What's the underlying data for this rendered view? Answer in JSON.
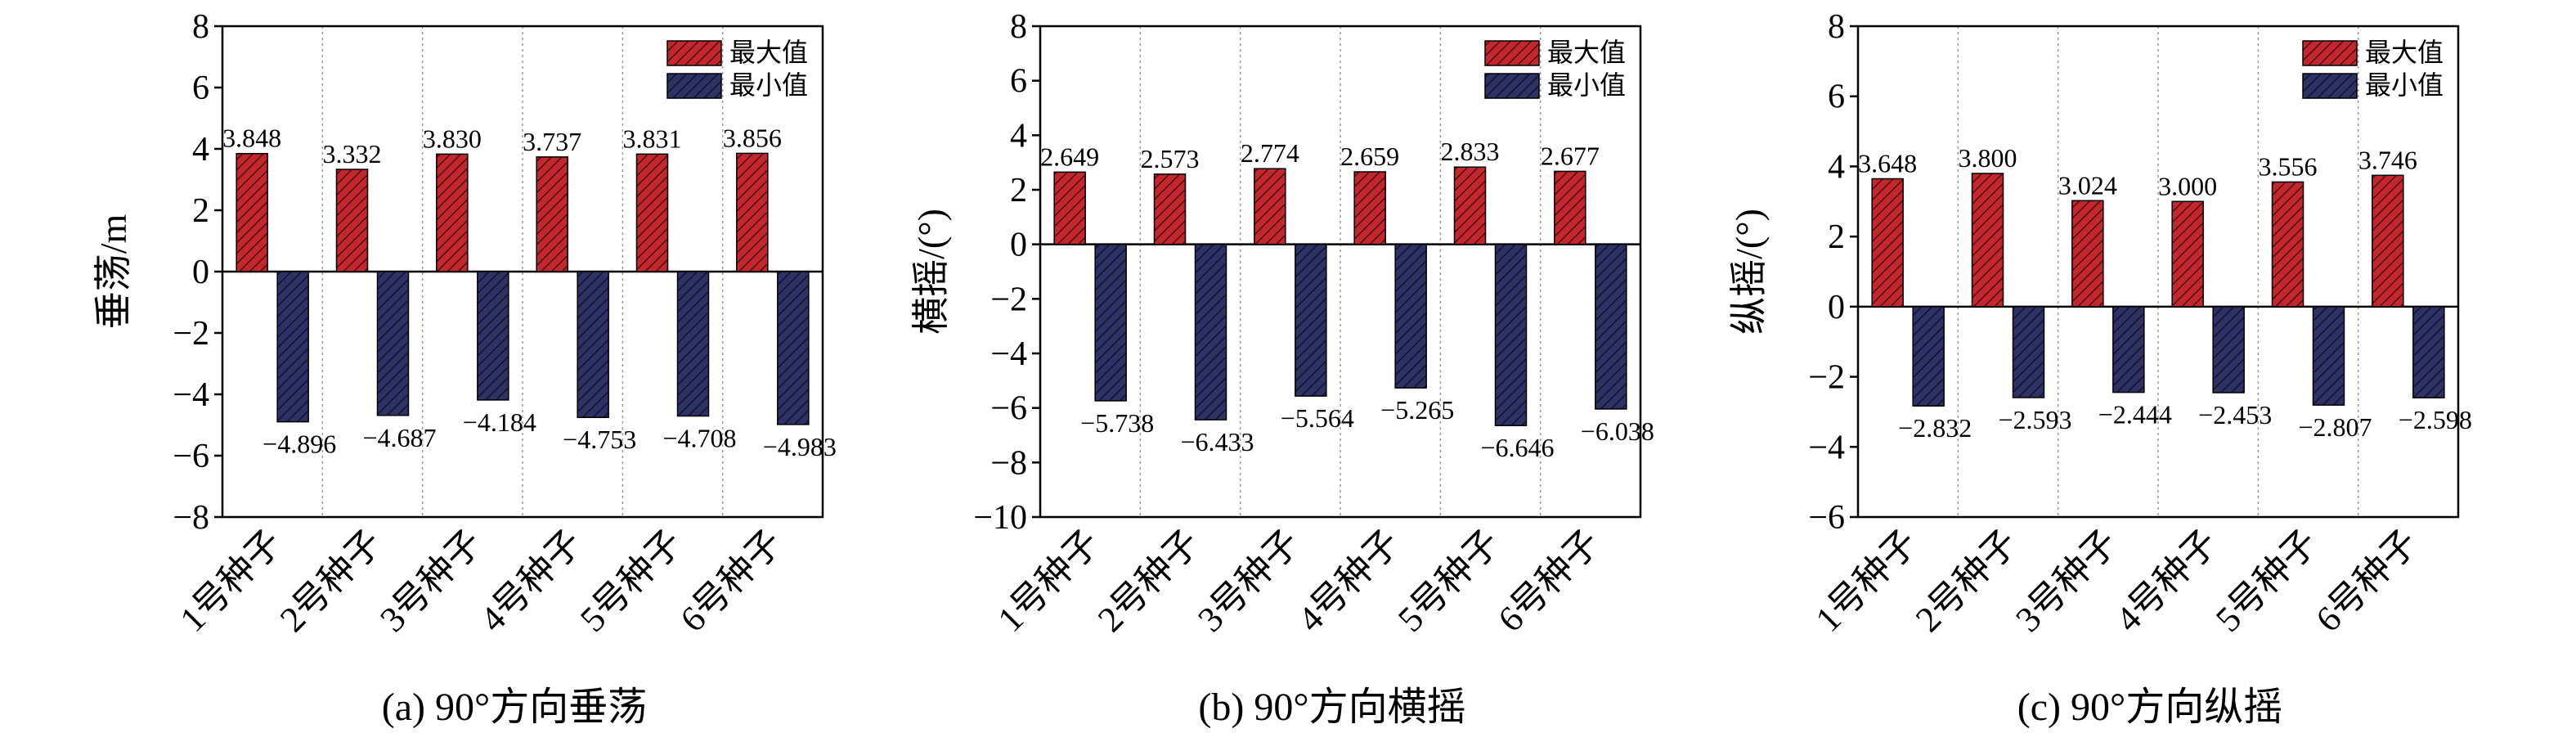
{
  "legend": {
    "max_label": "最大值",
    "min_label": "最小值"
  },
  "colors": {
    "max": "#c1272d",
    "min": "#2e3163",
    "axis": "#000000",
    "divider": "#9a9a9a"
  },
  "chart_data": [
    {
      "type": "bar",
      "caption": "(a) 90°方向垂荡",
      "ylabel": "垂荡/m",
      "ylim": [
        -8,
        8
      ],
      "yticks": [
        -8,
        -6,
        -4,
        -2,
        0,
        2,
        4,
        6,
        8
      ],
      "categories": [
        "1号种子",
        "2号种子",
        "3号种子",
        "4号种子",
        "5号种子",
        "6号种子"
      ],
      "series": [
        {
          "name": "最大值",
          "values": [
            3.848,
            3.332,
            3.83,
            3.737,
            3.831,
            3.856
          ],
          "labels": [
            "3.848",
            "3.332",
            "3.830",
            "3.737",
            "3.831",
            "3.856"
          ]
        },
        {
          "name": "最小值",
          "values": [
            -4.896,
            -4.687,
            -4.184,
            -4.753,
            -4.708,
            -4.983
          ],
          "labels": [
            "−4.896",
            "−4.687",
            "−4.184",
            "−4.753",
            "−4.708",
            "−4.983"
          ]
        }
      ],
      "legend_position": "top-right",
      "grid": false
    },
    {
      "type": "bar",
      "caption": "(b) 90°方向横摇",
      "ylabel": "横摇/(°)",
      "ylim": [
        -10,
        8
      ],
      "yticks": [
        -10,
        -8,
        -6,
        -4,
        -2,
        0,
        2,
        4,
        6,
        8
      ],
      "categories": [
        "1号种子",
        "2号种子",
        "3号种子",
        "4号种子",
        "5号种子",
        "6号种子"
      ],
      "series": [
        {
          "name": "最大值",
          "values": [
            2.649,
            2.573,
            2.774,
            2.659,
            2.833,
            2.677
          ],
          "labels": [
            "2.649",
            "2.573",
            "2.774",
            "2.659",
            "2.833",
            "2.677"
          ]
        },
        {
          "name": "最小值",
          "values": [
            -5.738,
            -6.433,
            -5.564,
            -5.265,
            -6.646,
            -6.038
          ],
          "labels": [
            "−5.738",
            "−6.433",
            "−5.564",
            "−5.265",
            "−6.646",
            "−6.038"
          ]
        }
      ],
      "legend_position": "top-right",
      "grid": false
    },
    {
      "type": "bar",
      "caption": "(c) 90°方向纵摇",
      "ylabel": "纵摇/(°)",
      "ylim": [
        -6,
        8
      ],
      "yticks": [
        -6,
        -4,
        -2,
        0,
        2,
        4,
        6,
        8
      ],
      "categories": [
        "1号种子",
        "2号种子",
        "3号种子",
        "4号种子",
        "5号种子",
        "6号种子"
      ],
      "series": [
        {
          "name": "最大值",
          "values": [
            3.648,
            3.8,
            3.024,
            3.0,
            3.556,
            3.746
          ],
          "labels": [
            "3.648",
            "3.800",
            "3.024",
            "3.000",
            "3.556",
            "3.746"
          ]
        },
        {
          "name": "最小值",
          "values": [
            -2.832,
            -2.593,
            -2.444,
            -2.453,
            -2.807,
            -2.598
          ],
          "labels": [
            "−2.832",
            "−2.593",
            "−2.444",
            "−2.453",
            "−2.807",
            "−2.598"
          ]
        }
      ],
      "legend_position": "top-right",
      "grid": false
    }
  ]
}
